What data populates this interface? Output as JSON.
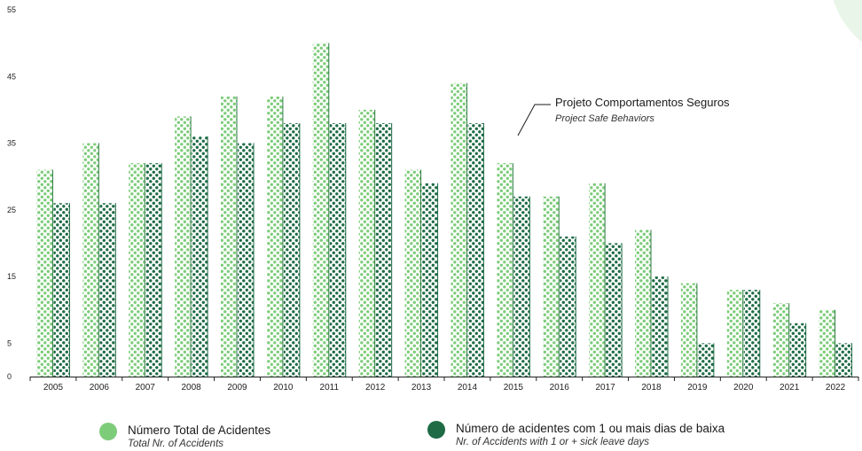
{
  "colors": {
    "total": "#7dcc7a",
    "leave": "#1e6b45",
    "corner": "#e9f5e8"
  },
  "chart_data": {
    "type": "bar",
    "categories": [
      "2005",
      "2006",
      "2007",
      "2008",
      "2009",
      "2010",
      "2011",
      "2012",
      "2013",
      "2014",
      "2015",
      "2016",
      "2017",
      "2018",
      "2019",
      "2020",
      "2021",
      "2022"
    ],
    "series": [
      {
        "name": "Número Total de Acidentes",
        "values": [
          31,
          35,
          32,
          39,
          42,
          42,
          50,
          40,
          31,
          44,
          32,
          27,
          29,
          22,
          14,
          13,
          11,
          10
        ]
      },
      {
        "name": "Número de acidentes com 1 ou mais dias de baixa",
        "values": [
          26,
          26,
          32,
          36,
          35,
          38,
          38,
          38,
          29,
          38,
          27,
          21,
          20,
          15,
          5,
          13,
          8,
          5
        ]
      }
    ],
    "yticks": [
      0,
      5,
      15,
      25,
      35,
      45,
      55
    ],
    "ylim": [
      0,
      55
    ],
    "grid": false,
    "annotation": {
      "category": "2015",
      "title": "Projeto Comportamentos Seguros",
      "subtitle": "Project Safe Behaviors"
    }
  },
  "legend": [
    {
      "label": "Número Total de Acidentes",
      "sublabel": "Total Nr. of Accidents"
    },
    {
      "label": "Número de acidentes com 1 ou mais dias de baixa",
      "sublabel": "Nr. of Accidents with 1 or + sick leave days"
    }
  ]
}
